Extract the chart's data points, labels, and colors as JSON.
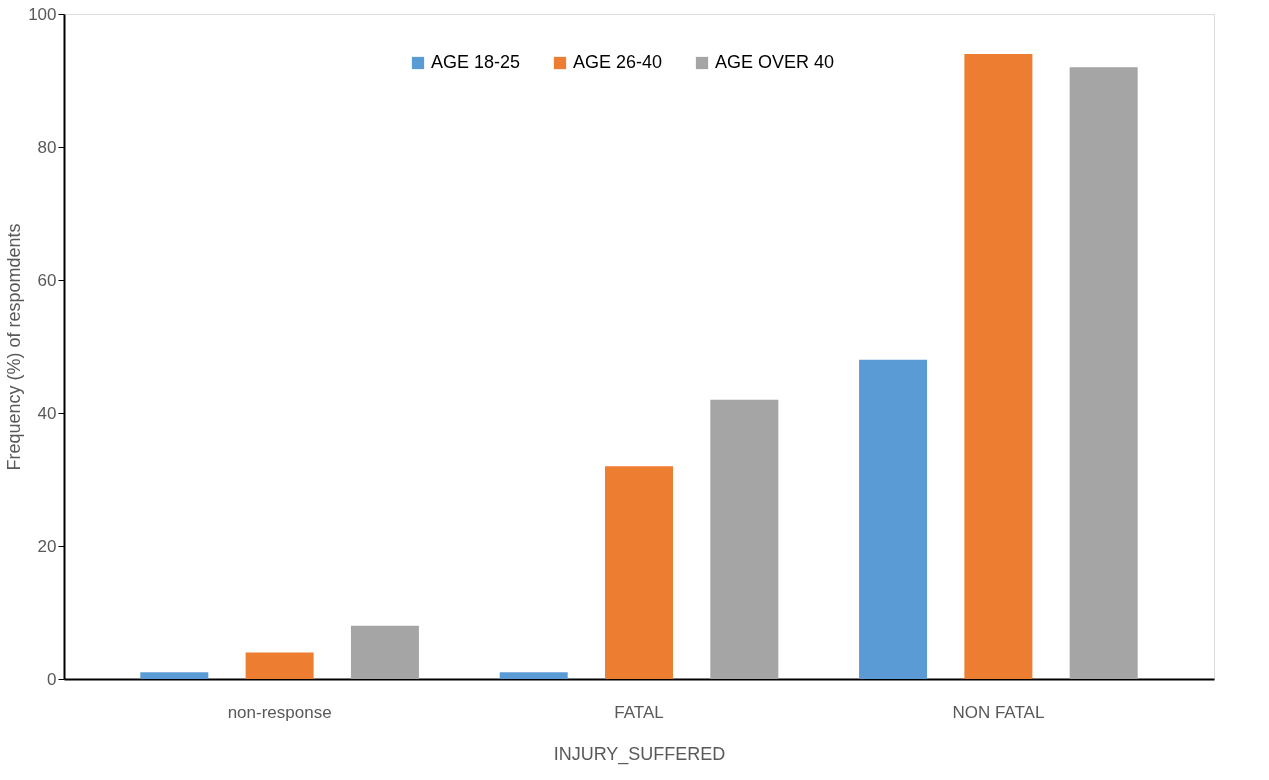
{
  "chart_data": {
    "type": "bar",
    "xlabel": "INJURY_SUFFERED",
    "ylabel": "Frequency  (%) of respomdents",
    "categories": [
      "non-response",
      "FATAL",
      "NON FATAL"
    ],
    "series": [
      {
        "name": "AGE 18-25",
        "color": "#5b9bd5",
        "values": [
          1,
          1,
          48
        ]
      },
      {
        "name": "AGE 26-40",
        "color": "#ed7d31",
        "values": [
          4,
          32,
          94
        ]
      },
      {
        "name": "AGE OVER 40",
        "color": "#a5a5a5",
        "values": [
          8,
          42,
          92
        ]
      }
    ],
    "ylim": [
      0,
      100
    ],
    "yticks": [
      0,
      20,
      40,
      60,
      80,
      100
    ],
    "grid": false,
    "legend": "top"
  }
}
